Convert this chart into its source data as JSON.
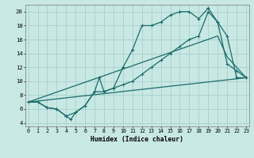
{
  "xlabel": "Humidex (Indice chaleur)",
  "xlim": [
    -0.3,
    23.3
  ],
  "ylim": [
    3.5,
    21.0
  ],
  "xticks": [
    0,
    1,
    2,
    3,
    4,
    5,
    6,
    7,
    8,
    9,
    10,
    11,
    12,
    13,
    14,
    15,
    16,
    17,
    18,
    19,
    20,
    21,
    22,
    23
  ],
  "yticks": [
    4,
    6,
    8,
    10,
    12,
    14,
    16,
    18,
    20
  ],
  "bg_color": "#c8e8e4",
  "grid_color": "#a8d0cc",
  "line_color": "#1a6b6b",
  "line1_x": [
    0,
    1,
    2,
    3,
    4,
    5,
    6,
    7,
    7.5,
    8,
    9,
    10,
    11,
    12,
    13,
    14,
    15,
    16,
    17,
    18,
    19,
    20,
    21,
    22,
    23
  ],
  "line1_y": [
    7,
    7,
    6.2,
    6,
    5,
    5.5,
    6.5,
    8.5,
    10.5,
    8.5,
    9,
    12,
    14.5,
    18,
    18,
    18.5,
    19.5,
    20,
    20,
    19,
    20.5,
    18.5,
    16.5,
    10.5,
    10.5
  ],
  "line2_x": [
    0,
    1,
    2,
    3,
    4,
    4.5,
    5,
    6,
    7,
    8,
    9,
    10,
    11,
    12,
    13,
    14,
    15,
    16,
    17,
    18,
    19,
    20,
    21,
    22,
    23
  ],
  "line2_y": [
    7,
    7,
    6.2,
    6,
    5,
    4.5,
    5.5,
    6.5,
    8.5,
    8.5,
    9,
    9.5,
    10,
    11,
    12,
    13,
    14,
    15,
    16,
    16.5,
    20,
    18.5,
    12.5,
    11.5,
    10.5
  ],
  "line3_x": [
    0,
    23
  ],
  "line3_y": [
    7,
    10.5
  ],
  "line4_x": [
    0,
    20,
    21,
    22,
    23
  ],
  "line4_y": [
    7,
    16.5,
    13.5,
    12,
    10.5
  ]
}
